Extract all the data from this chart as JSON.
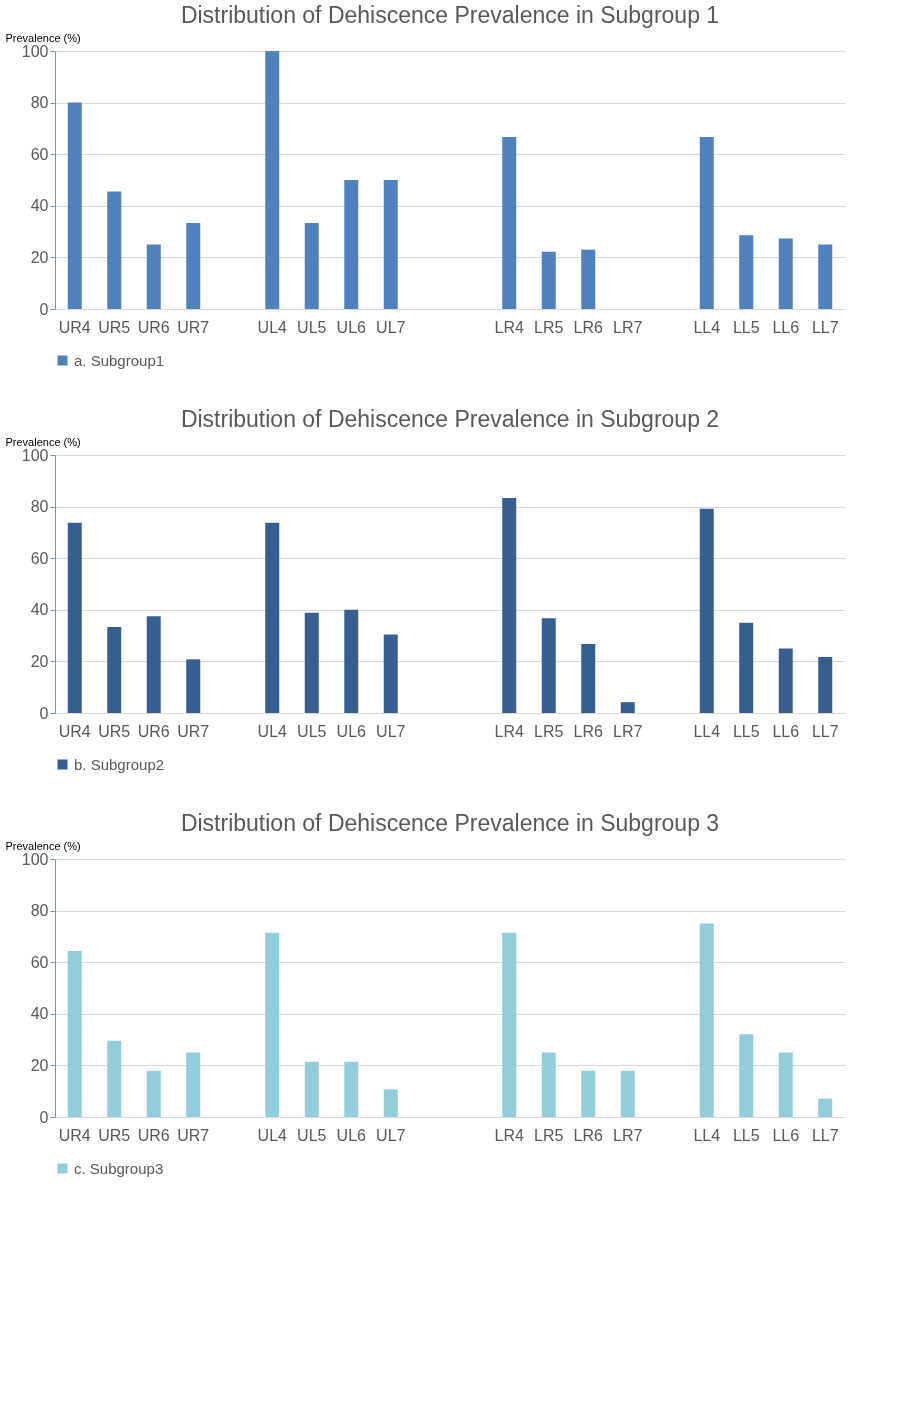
{
  "chart_data": [
    {
      "type": "bar",
      "title": "Distribution of Dehiscence Prevalence in Subgroup 1",
      "ylabel": "Prevalence (%)",
      "categories": [
        "UR4",
        "UR5",
        "UR6",
        "UR7",
        null,
        "UL4",
        "UL5",
        "UL6",
        "UL7",
        null,
        null,
        "LR4",
        "LR5",
        "LR6",
        "LR7",
        null,
        "LL4",
        "LL5",
        "LL6",
        "LL7"
      ],
      "series": [
        {
          "name": "a. Subgroup1",
          "color": "#4f81bd",
          "values": [
            80,
            45.5,
            25,
            33.3,
            null,
            100,
            33.3,
            50,
            50,
            null,
            null,
            66.7,
            22.2,
            23,
            0,
            null,
            66.7,
            28.6,
            27.3,
            25
          ]
        }
      ],
      "ylim": [
        0,
        100
      ],
      "yticks": [
        0,
        20,
        40,
        60,
        80,
        100
      ],
      "grid": "y",
      "legend": "bottom"
    },
    {
      "type": "bar",
      "title": "Distribution of Dehiscence Prevalence in Subgroup 2",
      "ylabel": "Prevalence (%)",
      "categories": [
        "UR4",
        "UR5",
        "UR6",
        "UR7",
        null,
        "UL4",
        "UL5",
        "UL6",
        "UL7",
        null,
        null,
        "LR4",
        "LR5",
        "LR6",
        "LR7",
        null,
        "LL4",
        "LL5",
        "LL6",
        "LL7"
      ],
      "series": [
        {
          "name": "b. Subgroup2",
          "color": "#355f91",
          "values": [
            73.7,
            33.3,
            37.5,
            20.8,
            null,
            73.7,
            38.9,
            40,
            30.4,
            null,
            null,
            83.3,
            36.7,
            26.7,
            4.2,
            null,
            79.2,
            35,
            25,
            21.7
          ]
        }
      ],
      "ylim": [
        0,
        100
      ],
      "yticks": [
        0,
        20,
        40,
        60,
        80,
        100
      ],
      "grid": "y",
      "legend": "bottom"
    },
    {
      "type": "bar",
      "title": "Distribution of Dehiscence Prevalence in Subgroup 3",
      "ylabel": "Prevalence (%)",
      "categories": [
        "UR4",
        "UR5",
        "UR6",
        "UR7",
        null,
        "UL4",
        "UL5",
        "UL6",
        "UL7",
        null,
        null,
        "LR4",
        "LR5",
        "LR6",
        "LR7",
        null,
        "LL4",
        "LL5",
        "LL6",
        "LL7"
      ],
      "series": [
        {
          "name": "c. Subgroup3",
          "color": "#92cddc",
          "values": [
            64.3,
            29.6,
            17.9,
            25,
            null,
            71.4,
            21.4,
            21.4,
            10.7,
            null,
            null,
            71.4,
            25,
            17.9,
            17.9,
            null,
            75,
            32.1,
            25,
            7.1
          ]
        }
      ],
      "ylim": [
        0,
        100
      ],
      "yticks": [
        0,
        20,
        40,
        60,
        80,
        100
      ],
      "grid": "y",
      "legend": "bottom"
    }
  ]
}
